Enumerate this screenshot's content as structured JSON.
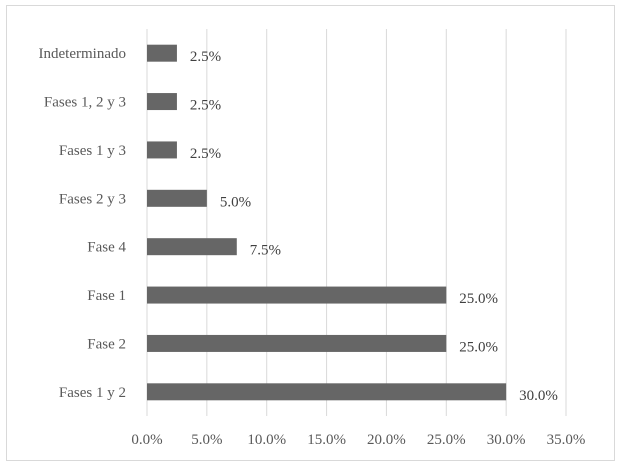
{
  "chart_data": {
    "type": "bar",
    "orientation": "horizontal",
    "categories": [
      "Indeterminado",
      "Fases 1, 2 y 3",
      "Fases 1 y 3",
      "Fases 2 y 3",
      "Fase 4",
      "Fase 1",
      "Fase 2",
      "Fases 1 y 2"
    ],
    "values": [
      2.5,
      2.5,
      2.5,
      5.0,
      7.5,
      25.0,
      25.0,
      30.0
    ],
    "data_labels": [
      "2.5%",
      "2.5%",
      "2.5%",
      "5.0%",
      "7.5%",
      "25.0%",
      "25.0%",
      "30.0%"
    ],
    "xlim": [
      0,
      35
    ],
    "x_ticks": [
      0,
      5,
      10,
      15,
      20,
      25,
      30,
      35
    ],
    "x_tick_labels": [
      "0.0%",
      "5.0%",
      "10.0%",
      "15.0%",
      "20.0%",
      "25.0%",
      "30.0%",
      "35.0%"
    ],
    "grid": true,
    "legend": "none",
    "bar_color": "#666666",
    "title": "",
    "xlabel": "",
    "ylabel": ""
  }
}
